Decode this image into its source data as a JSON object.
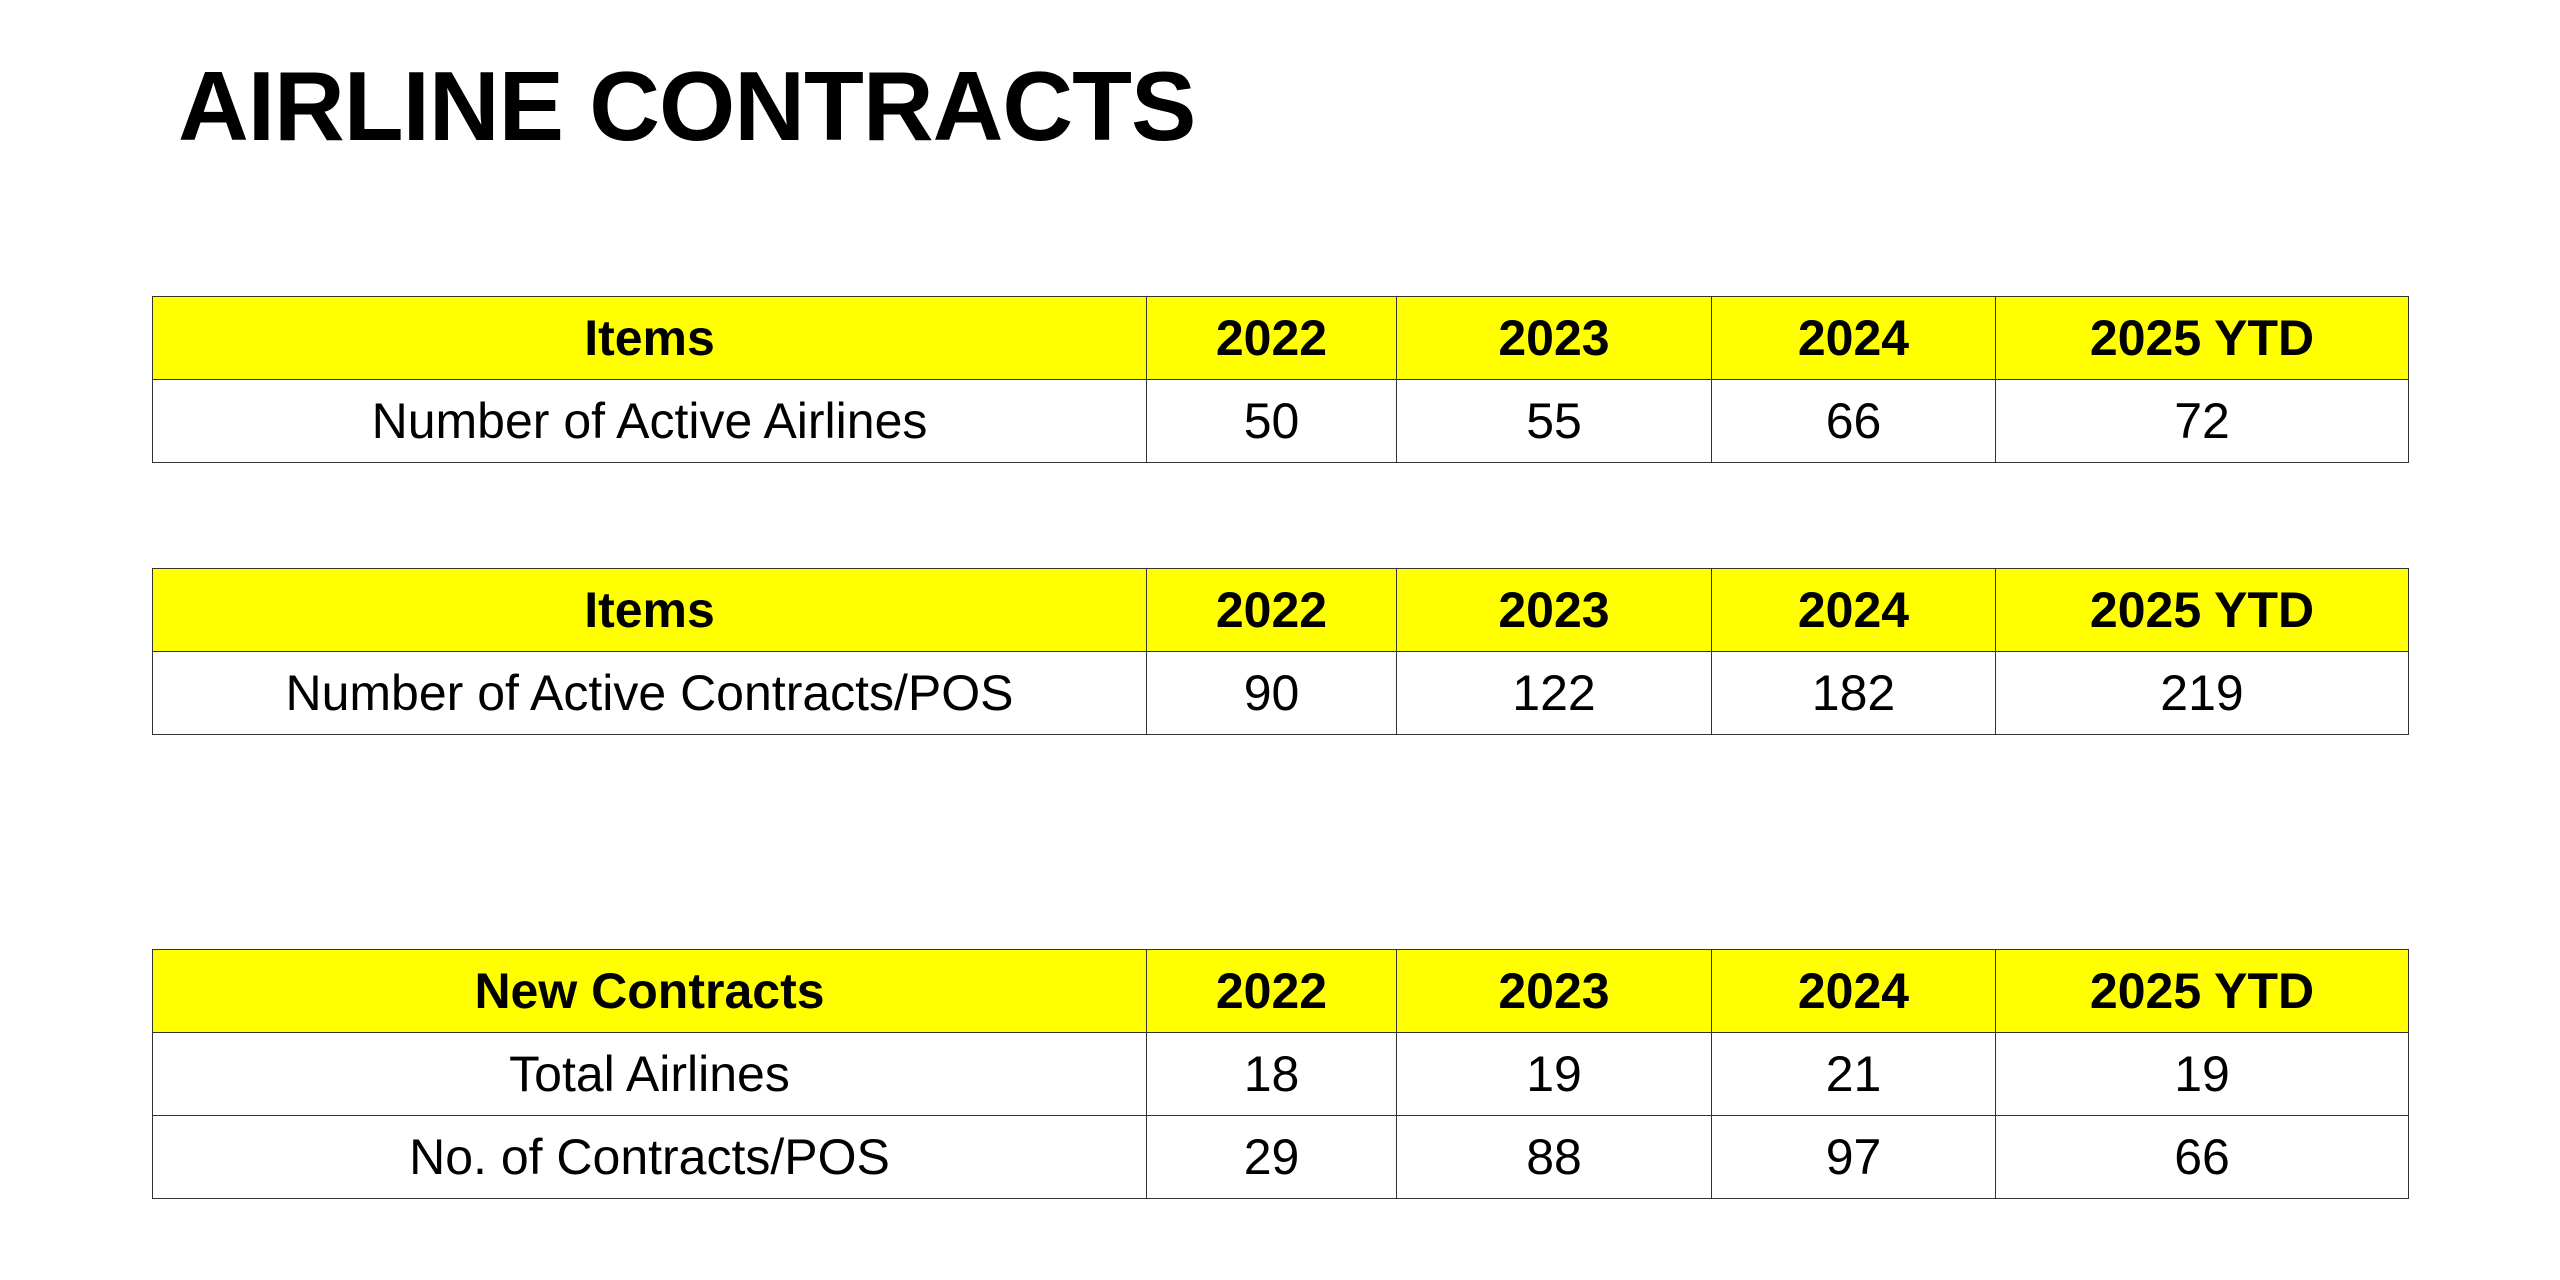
{
  "title": "AIRLINE CONTRACTS",
  "tables": [
    {
      "headers": [
        "Items",
        "2022",
        "2023",
        "2024",
        "2025 YTD"
      ],
      "rows": [
        [
          "Number of Active Airlines",
          "50",
          "55",
          "66",
          "72"
        ]
      ]
    },
    {
      "headers": [
        "Items",
        "2022",
        "2023",
        "2024",
        "2025 YTD"
      ],
      "rows": [
        [
          "Number of Active Contracts/POS",
          "90",
          "122",
          "182",
          "219"
        ]
      ]
    },
    {
      "headers": [
        "New Contracts",
        "2022",
        "2023",
        "2024",
        "2025 YTD"
      ],
      "rows": [
        [
          "Total Airlines",
          "18",
          "19",
          "21",
          "19"
        ],
        [
          "No. of Contracts/POS",
          "29",
          "88",
          "97",
          "66"
        ]
      ]
    }
  ],
  "colors": {
    "header_bg": "#FFFF00",
    "border": "#333333"
  }
}
